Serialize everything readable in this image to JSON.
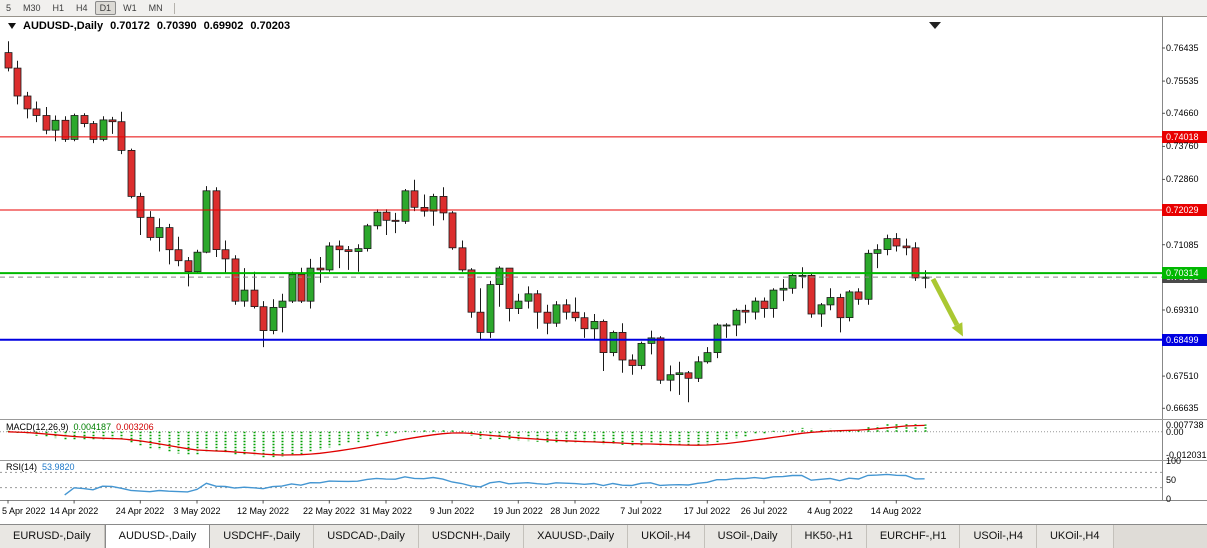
{
  "toolbar": {
    "periods": [
      "5",
      "M30",
      "H1",
      "H4",
      "D1",
      "W1",
      "MN"
    ],
    "active": "D1"
  },
  "colors": {
    "bull": "#2CA82C",
    "bear": "#DC2E2E",
    "wick": "#1A1A1A",
    "line_red": "#E80000",
    "line_green": "#00B800",
    "line_blue": "#0000E0",
    "bid_box": "#4A4A4A",
    "macd_hist": "#00A000",
    "macd_signal": "#E00000",
    "rsi_line": "#4496D2",
    "level_dash": "#999999",
    "arrow": "#AAC832"
  },
  "chart_data": {
    "type": "candlestick",
    "symbol": "AUDUSD",
    "timeframe": "Daily",
    "symbol_title": "AUDUSD-,Daily",
    "title_ohlc": {
      "open": "0.70172",
      "high": "0.70390",
      "low": "0.69902",
      "close": "0.70203"
    },
    "y_axis_labels": [
      {
        "text": "0.76435",
        "price": 0.76435
      },
      {
        "text": "0.75535",
        "price": 0.75535
      },
      {
        "text": "0.74660",
        "price": 0.7466
      },
      {
        "text": "0.73760",
        "price": 0.7376
      },
      {
        "text": "0.72860",
        "price": 0.7286
      },
      {
        "text": "0.71085",
        "price": 0.71085
      },
      {
        "text": "0.69310",
        "price": 0.6931
      },
      {
        "text": "0.67510",
        "price": 0.6751
      },
      {
        "text": "0.66635",
        "price": 0.66635
      }
    ],
    "x_axis_ticks": [
      {
        "label": "5 Apr 2022",
        "i": 0
      },
      {
        "label": "14 Apr 2022",
        "i": 7
      },
      {
        "label": "24 Apr 2022",
        "i": 14
      },
      {
        "label": "3 May 2022",
        "i": 20
      },
      {
        "label": "12 May 2022",
        "i": 27
      },
      {
        "label": "22 May 2022",
        "i": 34
      },
      {
        "label": "31 May 2022",
        "i": 40
      },
      {
        "label": "9 Jun 2022",
        "i": 47
      },
      {
        "label": "19 Jun 2022",
        "i": 54
      },
      {
        "label": "28 Jun 2022",
        "i": 60
      },
      {
        "label": "7 Jul 2022",
        "i": 67
      },
      {
        "label": "17 Jul 2022",
        "i": 74
      },
      {
        "label": "26 Jul 2022",
        "i": 80
      },
      {
        "label": "4 Aug 2022",
        "i": 87
      },
      {
        "label": "14 Aug 2022",
        "i": 94
      }
    ],
    "hlines": [
      {
        "price": 0.74018,
        "label": "0.74018",
        "color": "#E80000",
        "width": 1
      },
      {
        "price": 0.72029,
        "label": "0.72029",
        "color": "#E80000",
        "width": 1
      },
      {
        "price": 0.70314,
        "label": "0.70314",
        "color": "#00B800",
        "width": 2
      },
      {
        "price": 0.68499,
        "label": "0.68499",
        "color": "#0000E0",
        "width": 2
      }
    ],
    "bid_line": {
      "price": 0.70203,
      "label": "0.70203"
    },
    "candles": {
      "open": [
        0.7631,
        0.7589,
        0.7513,
        0.7478,
        0.746,
        0.742,
        0.7447,
        0.7395,
        0.746,
        0.7438,
        0.7395,
        0.7448,
        0.7443,
        0.7365,
        0.724,
        0.7183,
        0.7128,
        0.7155,
        0.7095,
        0.7065,
        0.7035,
        0.7088,
        0.7255,
        0.7095,
        0.707,
        0.6955,
        0.6985,
        0.694,
        0.6875,
        0.6938,
        0.6955,
        0.7028,
        0.6955,
        0.7045,
        0.704,
        0.7105,
        0.7095,
        0.709,
        0.7098,
        0.716,
        0.7197,
        0.7175,
        0.7172,
        0.7255,
        0.721,
        0.72,
        0.724,
        0.7195,
        0.71,
        0.704,
        0.6925,
        0.687,
        0.7,
        0.7045,
        0.6935,
        0.6955,
        0.6975,
        0.6925,
        0.6895,
        0.6945,
        0.6925,
        0.691,
        0.688,
        0.69,
        0.6815,
        0.687,
        0.6795,
        0.678,
        0.684,
        0.6855,
        0.674,
        0.6755,
        0.676,
        0.6745,
        0.679,
        0.6815,
        0.689,
        0.689,
        0.693,
        0.6925,
        0.6955,
        0.6935,
        0.6985,
        0.699,
        0.7025,
        0.7025,
        0.692,
        0.6945,
        0.6965,
        0.691,
        0.698,
        0.696,
        0.7085,
        0.7095,
        0.7125,
        0.7105,
        0.71,
        0.70172
      ],
      "high": [
        0.7662,
        0.7609,
        0.7524,
        0.7498,
        0.7483,
        0.746,
        0.7458,
        0.7465,
        0.7466,
        0.7445,
        0.7458,
        0.7456,
        0.747,
        0.737,
        0.725,
        0.72,
        0.718,
        0.7165,
        0.713,
        0.7075,
        0.7095,
        0.7268,
        0.7265,
        0.712,
        0.708,
        0.7045,
        0.7035,
        0.6955,
        0.696,
        0.6975,
        0.7035,
        0.7046,
        0.707,
        0.7075,
        0.7115,
        0.712,
        0.7105,
        0.711,
        0.7165,
        0.7205,
        0.7205,
        0.7195,
        0.726,
        0.7285,
        0.7245,
        0.7247,
        0.7265,
        0.72,
        0.712,
        0.7045,
        0.699,
        0.701,
        0.705,
        0.7045,
        0.6975,
        0.6995,
        0.6985,
        0.6945,
        0.6955,
        0.696,
        0.6965,
        0.6925,
        0.692,
        0.6905,
        0.6875,
        0.6895,
        0.681,
        0.6845,
        0.6875,
        0.686,
        0.678,
        0.679,
        0.6765,
        0.6805,
        0.683,
        0.6895,
        0.6895,
        0.6935,
        0.6945,
        0.6965,
        0.6965,
        0.699,
        0.7015,
        0.7033,
        0.7047,
        0.703,
        0.695,
        0.699,
        0.6975,
        0.6985,
        0.699,
        0.7095,
        0.711,
        0.7136,
        0.714,
        0.7125,
        0.7115,
        0.7039
      ],
      "low": [
        0.758,
        0.749,
        0.7452,
        0.7442,
        0.7409,
        0.739,
        0.7388,
        0.739,
        0.7428,
        0.7385,
        0.739,
        0.741,
        0.7355,
        0.7235,
        0.7135,
        0.712,
        0.709,
        0.7055,
        0.705,
        0.6995,
        0.703,
        0.7085,
        0.7075,
        0.703,
        0.6945,
        0.694,
        0.6935,
        0.683,
        0.6865,
        0.687,
        0.695,
        0.695,
        0.6935,
        0.7005,
        0.7035,
        0.7045,
        0.704,
        0.7035,
        0.709,
        0.715,
        0.7135,
        0.714,
        0.7165,
        0.72,
        0.7185,
        0.716,
        0.7175,
        0.7095,
        0.7035,
        0.691,
        0.685,
        0.6855,
        0.694,
        0.69,
        0.692,
        0.6935,
        0.688,
        0.6865,
        0.6885,
        0.6905,
        0.69,
        0.6855,
        0.685,
        0.6765,
        0.6805,
        0.676,
        0.6755,
        0.677,
        0.681,
        0.673,
        0.671,
        0.67,
        0.668,
        0.6735,
        0.6785,
        0.68,
        0.6855,
        0.686,
        0.6895,
        0.6905,
        0.691,
        0.691,
        0.6955,
        0.6975,
        0.699,
        0.691,
        0.6885,
        0.693,
        0.687,
        0.69,
        0.6945,
        0.6945,
        0.7045,
        0.708,
        0.709,
        0.708,
        0.701,
        0.69902
      ],
      "close": [
        0.7589,
        0.7513,
        0.7478,
        0.746,
        0.742,
        0.7447,
        0.7395,
        0.746,
        0.7438,
        0.7395,
        0.7448,
        0.7443,
        0.7365,
        0.724,
        0.7183,
        0.7128,
        0.7155,
        0.7095,
        0.7065,
        0.7035,
        0.7088,
        0.7255,
        0.7095,
        0.707,
        0.6955,
        0.6985,
        0.694,
        0.6875,
        0.6938,
        0.6955,
        0.7028,
        0.6955,
        0.7045,
        0.704,
        0.7105,
        0.7095,
        0.709,
        0.7098,
        0.716,
        0.7197,
        0.7175,
        0.7172,
        0.7255,
        0.721,
        0.72,
        0.724,
        0.7195,
        0.71,
        0.704,
        0.6925,
        0.687,
        0.7,
        0.7045,
        0.6935,
        0.6955,
        0.6975,
        0.6925,
        0.6895,
        0.6945,
        0.6925,
        0.691,
        0.688,
        0.69,
        0.6815,
        0.687,
        0.6795,
        0.678,
        0.684,
        0.6855,
        0.674,
        0.6755,
        0.676,
        0.6745,
        0.679,
        0.6815,
        0.689,
        0.689,
        0.693,
        0.6925,
        0.6955,
        0.6935,
        0.6985,
        0.699,
        0.7025,
        0.7025,
        0.692,
        0.6945,
        0.6965,
        0.691,
        0.698,
        0.696,
        0.7085,
        0.7095,
        0.7125,
        0.7105,
        0.71,
        0.7018,
        0.70203
      ]
    },
    "indicators": {
      "macd": {
        "label": "MACD(12,26,9)",
        "fast": 12,
        "slow": 26,
        "signal": 9,
        "value": "0.004187",
        "signal_value": "0.003206",
        "axis": [
          "0.007738",
          "0.00",
          "-0.012031"
        ]
      },
      "rsi": {
        "label": "RSI(14)",
        "period": 14,
        "value": "53.9820",
        "axis": [
          "100",
          "50",
          "0"
        ],
        "levels": [
          70,
          30
        ]
      }
    }
  },
  "tabs": [
    {
      "label": "EURUSD-,Daily",
      "active": false
    },
    {
      "label": "AUDUSD-,Daily",
      "active": true
    },
    {
      "label": "USDCHF-,Daily",
      "active": false
    },
    {
      "label": "USDCAD-,Daily",
      "active": false
    },
    {
      "label": "USDCNH-,Daily",
      "active": false
    },
    {
      "label": "XAUUSD-,Daily",
      "active": false
    },
    {
      "label": "UKOil-,H4",
      "active": false
    },
    {
      "label": "USOil-,Daily",
      "active": false
    },
    {
      "label": "HK50-,H1",
      "active": false
    },
    {
      "label": "EURCHF-,H1",
      "active": false
    },
    {
      "label": "USOil-,H4",
      "active": false
    },
    {
      "label": "UKOil-,H4",
      "active": false
    }
  ]
}
